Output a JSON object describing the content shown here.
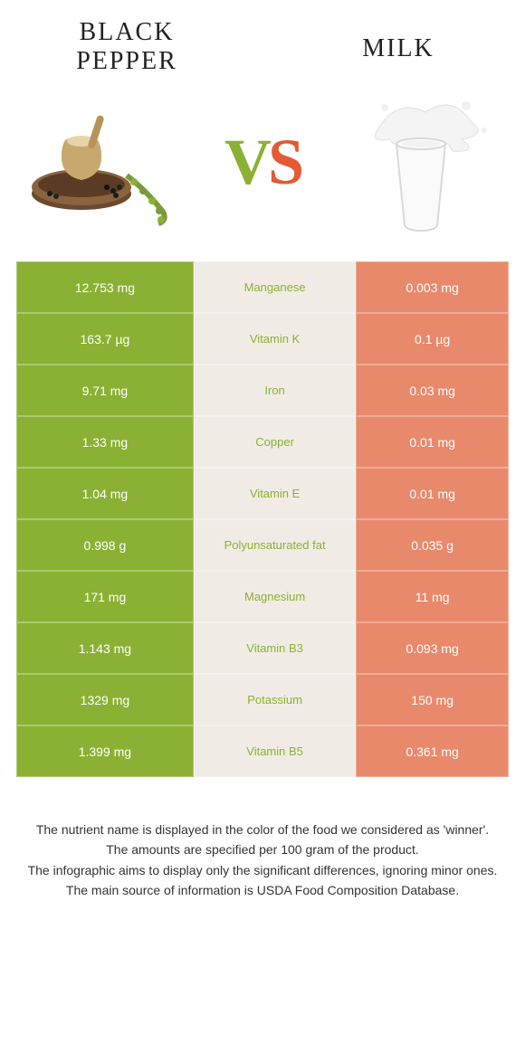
{
  "header": {
    "left_title": "Black Pepper",
    "right_title": "Milk"
  },
  "vs": {
    "v": "V",
    "s": "S"
  },
  "colors": {
    "left_food": "#8ab133",
    "right_food": "#e35a33",
    "left_cell_bg": "#8ab133",
    "mid_cell_bg": "#f0ece5",
    "right_cell_bg": "#e9896b",
    "mid_text_winner": "#8ab133"
  },
  "rows": [
    {
      "left": "12.753 mg",
      "nutrient": "Manganese",
      "right": "0.003 mg",
      "winner": "left"
    },
    {
      "left": "163.7 µg",
      "nutrient": "Vitamin K",
      "right": "0.1 µg",
      "winner": "left"
    },
    {
      "left": "9.71 mg",
      "nutrient": "Iron",
      "right": "0.03 mg",
      "winner": "left"
    },
    {
      "left": "1.33 mg",
      "nutrient": "Copper",
      "right": "0.01 mg",
      "winner": "left"
    },
    {
      "left": "1.04 mg",
      "nutrient": "Vitamin E",
      "right": "0.01 mg",
      "winner": "left"
    },
    {
      "left": "0.998 g",
      "nutrient": "Polyunsaturated fat",
      "right": "0.035 g",
      "winner": "left"
    },
    {
      "left": "171 mg",
      "nutrient": "Magnesium",
      "right": "11 mg",
      "winner": "left"
    },
    {
      "left": "1.143 mg",
      "nutrient": "Vitamin B3",
      "right": "0.093 mg",
      "winner": "left"
    },
    {
      "left": "1329 mg",
      "nutrient": "Potassium",
      "right": "150 mg",
      "winner": "left"
    },
    {
      "left": "1.399 mg",
      "nutrient": "Vitamin B5",
      "right": "0.361 mg",
      "winner": "left"
    }
  ],
  "footer": {
    "line1": "The nutrient name is displayed in the color of the food we considered as 'winner'.",
    "line2": "The amounts are specified per 100 gram of the product.",
    "line3": "The infographic aims to display only the significant differences, ignoring minor ones.",
    "line4": "The main source of information is USDA Food Composition Database."
  }
}
